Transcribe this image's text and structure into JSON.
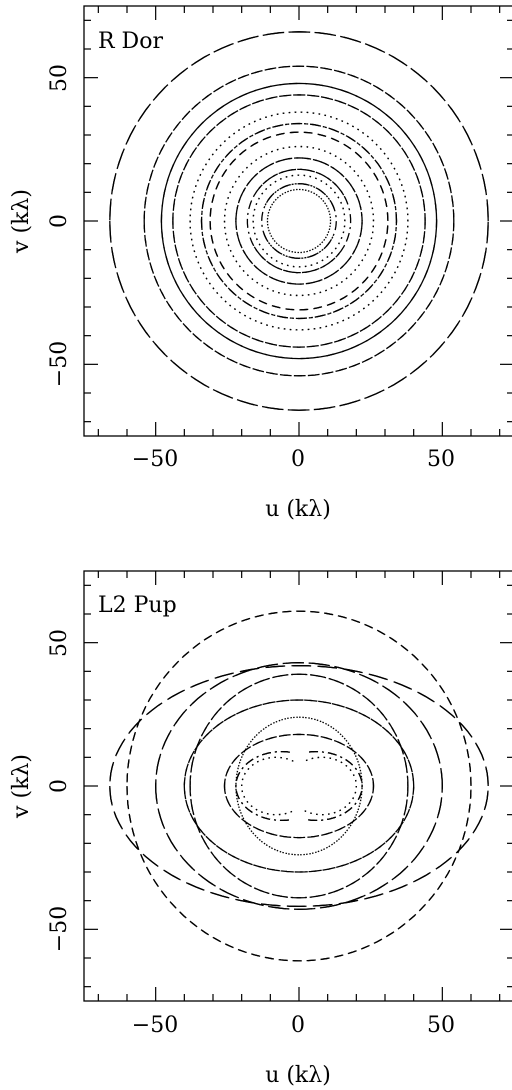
{
  "chart_data": [
    {
      "type": "scatter",
      "title": "R Dor",
      "xlabel": "u (kλ)",
      "ylabel": "v (kλ)",
      "xlim": [
        -75,
        75
      ],
      "ylim": [
        -75,
        75
      ],
      "xticks": [
        -50,
        0,
        50
      ],
      "yticks": [
        -50,
        0,
        50
      ],
      "xtick_labels": [
        "−50",
        "0",
        "50"
      ],
      "ytick_labels": [
        "−50",
        "0",
        "50"
      ],
      "grid": false,
      "tracks": [
        {
          "r": 11,
          "a0": 0,
          "a1": 360,
          "style": "dot"
        },
        {
          "r": 13,
          "a0": 20,
          "a1": 340,
          "style": "dashdot"
        },
        {
          "r": 16,
          "a0": 0,
          "a1": 360,
          "style": "dot"
        },
        {
          "r": 18,
          "a0": 30,
          "a1": 330,
          "style": "dashdot"
        },
        {
          "r": 22,
          "a0": 0,
          "a1": 360,
          "style": "dashdot"
        },
        {
          "r": 26,
          "a0": 0,
          "a1": 360,
          "style": "dot"
        },
        {
          "r": 31,
          "a0": 0,
          "a1": 360,
          "style": "dash"
        },
        {
          "r": 34,
          "a0": 0,
          "a1": 360,
          "style": "dashdot"
        },
        {
          "r": 38,
          "a0": 0,
          "a1": 360,
          "style": "dot"
        },
        {
          "r": 44,
          "a0": 0,
          "a1": 360,
          "style": "dash"
        },
        {
          "r": 48,
          "a0": 0,
          "a1": 360,
          "style": "longdash"
        },
        {
          "r": 54,
          "a0": 0,
          "a1": 360,
          "style": "dash"
        },
        {
          "r": 66,
          "a0": 0,
          "a1": 360,
          "style": "longdash"
        }
      ]
    },
    {
      "type": "scatter",
      "title": "L2 Pup",
      "xlabel": "u (kλ)",
      "ylabel": "v (kλ)",
      "xlim": [
        -75,
        75
      ],
      "ylim": [
        -75,
        75
      ],
      "xticks": [
        -50,
        0,
        50
      ],
      "yticks": [
        -50,
        0,
        50
      ],
      "xtick_labels": [
        "−50",
        "0",
        "50"
      ],
      "ytick_labels": [
        "−50",
        "0",
        "50"
      ],
      "grid": false,
      "tracks": [
        {
          "rx": 12,
          "ry": 10,
          "a0": -120,
          "a1": 120,
          "style": "dot",
          "cx": 8
        },
        {
          "rx": 12,
          "ry": 10,
          "a0": 60,
          "a1": 300,
          "style": "dot",
          "cx": -8
        },
        {
          "rx": 16,
          "ry": 12,
          "a0": -100,
          "a1": 100,
          "style": "dashdot",
          "cx": 6
        },
        {
          "rx": 16,
          "ry": 12,
          "a0": 80,
          "a1": 280,
          "style": "dashdot",
          "cx": -6
        },
        {
          "rx": 26,
          "ry": 18,
          "a0": 0,
          "a1": 360,
          "style": "dash"
        },
        {
          "rx": 22,
          "ry": 24,
          "a0": 0,
          "a1": 360,
          "style": "dot"
        },
        {
          "rx": 40,
          "ry": 30,
          "a0": 0,
          "a1": 360,
          "style": "dash"
        },
        {
          "rx": 38,
          "ry": 39,
          "a0": 0,
          "a1": 360,
          "style": "dashdot"
        },
        {
          "rx": 50,
          "ry": 43,
          "a0": 0,
          "a1": 360,
          "style": "longdash"
        },
        {
          "rx": 60,
          "ry": 61,
          "a0": 0,
          "a1": 360,
          "style": "dash"
        },
        {
          "rx": 66,
          "ry": 42,
          "a0": 0,
          "a1": 360,
          "style": "longdash"
        }
      ]
    }
  ],
  "colors": {
    "ink": "#000000",
    "background": "#ffffff"
  }
}
